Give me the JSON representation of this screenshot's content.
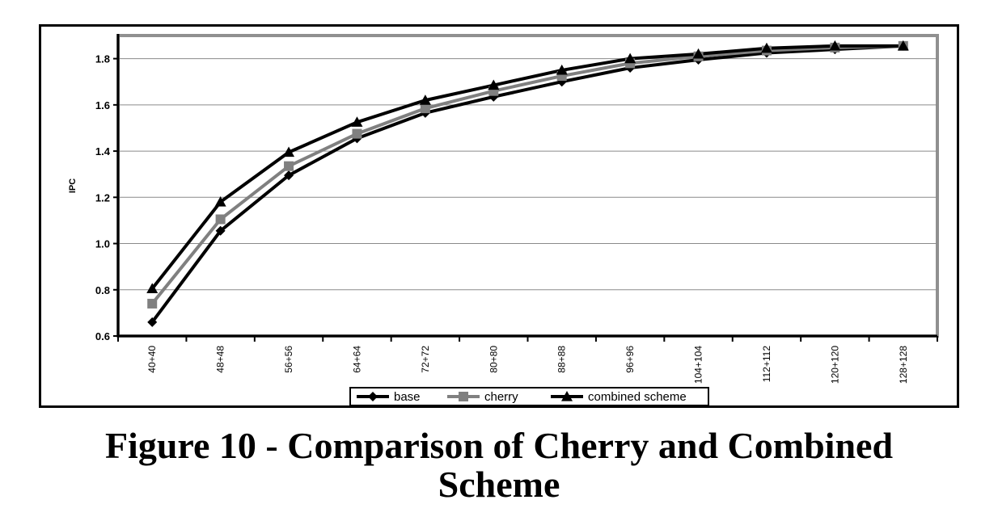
{
  "chart_data": {
    "type": "line",
    "title": "",
    "xlabel": "",
    "ylabel": "IPC",
    "ylim": [
      0.6,
      1.9
    ],
    "yticks": [
      "0.6",
      "0.8",
      "1.0",
      "1.2",
      "1.4",
      "1.6",
      "1.8"
    ],
    "grid": true,
    "legend_position": "bottom",
    "categories": [
      "40+40",
      "48+48",
      "56+56",
      "64+64",
      "72+72",
      "80+80",
      "88+88",
      "96+96",
      "104+104",
      "112+112",
      "120+120",
      "128+128"
    ],
    "series": [
      {
        "name": "base",
        "color": "#000000",
        "marker": "diamond",
        "values": [
          0.66,
          1.055,
          1.295,
          1.455,
          1.565,
          1.635,
          1.7,
          1.76,
          1.795,
          1.825,
          1.84,
          1.855
        ]
      },
      {
        "name": "cherry",
        "color": "#808080",
        "marker": "square",
        "values": [
          0.74,
          1.105,
          1.335,
          1.475,
          1.585,
          1.66,
          1.725,
          1.78,
          1.81,
          1.835,
          1.848,
          1.855
        ]
      },
      {
        "name": "combined scheme",
        "color": "#000000",
        "marker": "triangle",
        "values": [
          0.805,
          1.18,
          1.395,
          1.525,
          1.62,
          1.685,
          1.75,
          1.8,
          1.82,
          1.845,
          1.855,
          1.855
        ]
      }
    ]
  },
  "caption": {
    "line1": "Figure 10 - Comparison of Cherry and Combined",
    "line2": "Scheme"
  }
}
